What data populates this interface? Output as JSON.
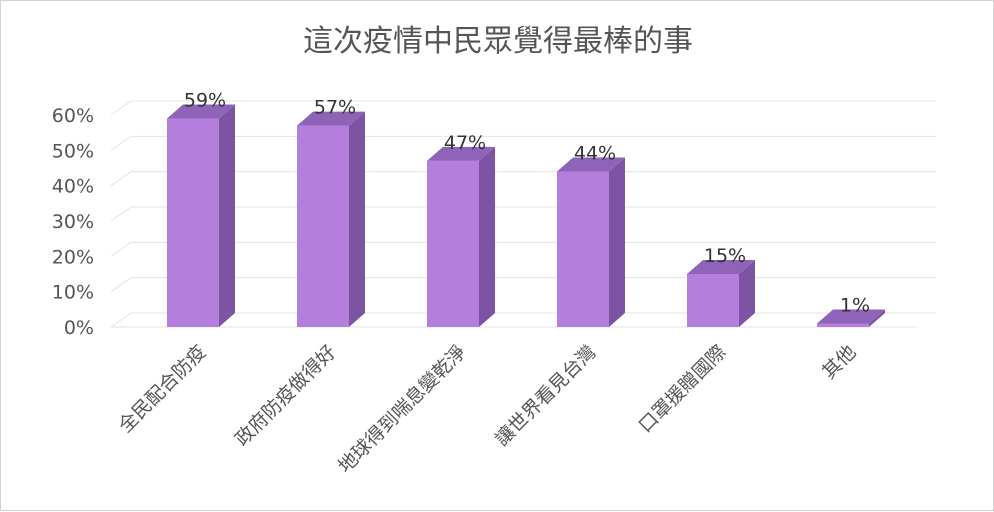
{
  "chart_data": {
    "type": "bar",
    "title": "這次疫情中民眾覺得最棒的事",
    "categories": [
      "全民配合防疫",
      "政府防疫做得好",
      "地球得到喘息變乾淨",
      "讓世界看見台灣",
      "口罩援贈國際",
      "其他"
    ],
    "values": [
      59,
      57,
      47,
      44,
      15,
      1
    ],
    "data_labels": [
      "59%",
      "57%",
      "47%",
      "44%",
      "15%",
      "1%"
    ],
    "y_ticks": [
      "0%",
      "10%",
      "20%",
      "30%",
      "40%",
      "50%",
      "60%"
    ],
    "ylim": [
      0,
      60
    ],
    "grid": true,
    "legend": "none",
    "style": "3d-column",
    "colors": {
      "front": "#b47fdc",
      "side": "#7d54a3",
      "top": "#8f63b8"
    }
  }
}
